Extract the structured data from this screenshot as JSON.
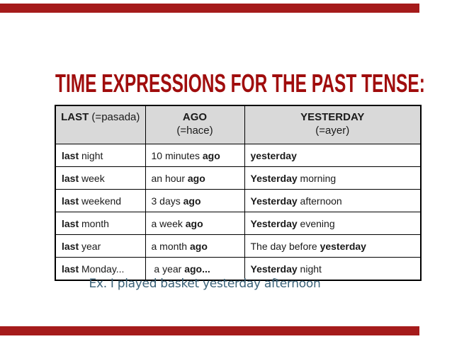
{
  "slide": {
    "title": "TIME EXPRESSIONS FOR THE PAST TENSE:",
    "example_sentence": "Ex. I played basket yesterday afternoon"
  },
  "colors": {
    "title_red": "#A00D0D",
    "bar_red": "#A51B1B",
    "header_bg": "#D9D9D9",
    "example_blue": "#3B6278",
    "table_border": "#000000",
    "cell_text": "#1A1A1A"
  },
  "table": {
    "headers": [
      {
        "lines": [
          [
            {
              "t": "LAST",
              "b": true
            },
            {
              "t": " (=pasada)",
              "b": false
            }
          ]
        ]
      },
      {
        "lines": [
          [
            {
              "t": "AGO",
              "b": true
            }
          ],
          [
            {
              "t": "(=hace)",
              "b": false
            }
          ]
        ]
      },
      {
        "lines": [
          [
            {
              "t": "YESTERDAY",
              "b": true
            }
          ],
          [
            {
              "t": "(=ayer)",
              "b": false
            }
          ]
        ]
      }
    ],
    "rows": [
      [
        [
          {
            "t": "last",
            "b": true
          },
          {
            "t": " night",
            "b": false
          }
        ],
        [
          {
            "t": "10 minutes ",
            "b": false
          },
          {
            "t": "ago",
            "b": true
          }
        ],
        [
          {
            "t": "yesterday",
            "b": true
          }
        ]
      ],
      [
        [
          {
            "t": "last",
            "b": true
          },
          {
            "t": " week",
            "b": false
          }
        ],
        [
          {
            "t": "an hour ",
            "b": false
          },
          {
            "t": "ago",
            "b": true
          }
        ],
        [
          {
            "t": "Yesterday",
            "b": true
          },
          {
            "t": " morning",
            "b": false
          }
        ]
      ],
      [
        [
          {
            "t": "last",
            "b": true
          },
          {
            "t": " weekend",
            "b": false
          }
        ],
        [
          {
            "t": "3 days ",
            "b": false
          },
          {
            "t": "ago",
            "b": true
          }
        ],
        [
          {
            "t": "Yesterday",
            "b": true
          },
          {
            "t": " afternoon",
            "b": false
          }
        ]
      ],
      [
        [
          {
            "t": "last",
            "b": true
          },
          {
            "t": " month",
            "b": false
          }
        ],
        [
          {
            "t": "a week ",
            "b": false
          },
          {
            "t": "ago",
            "b": true
          }
        ],
        [
          {
            "t": "Yesterday",
            "b": true
          },
          {
            "t": " evening",
            "b": false
          }
        ]
      ],
      [
        [
          {
            "t": "last",
            "b": true
          },
          {
            "t": " year",
            "b": false
          }
        ],
        [
          {
            "t": "a month ",
            "b": false
          },
          {
            "t": "ago",
            "b": true
          }
        ],
        [
          {
            "t": "The day before ",
            "b": false
          },
          {
            "t": "yesterday",
            "b": true
          }
        ]
      ],
      [
        [
          {
            "t": "last",
            "b": true
          },
          {
            "t": " Monday...",
            "b": false
          }
        ],
        [
          {
            "t": " a year ",
            "b": false
          },
          {
            "t": "ago...",
            "b": true
          }
        ],
        [
          {
            "t": "Yesterday",
            "b": true
          },
          {
            "t": " night",
            "b": false
          }
        ]
      ]
    ]
  }
}
